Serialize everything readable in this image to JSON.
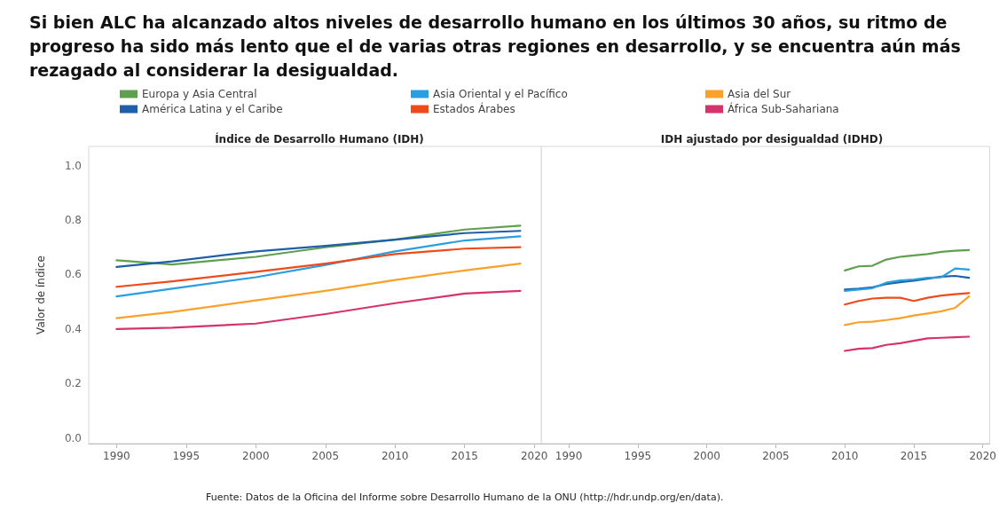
{
  "chart_data": [
    {
      "type": "line",
      "title": "Si bien ALC ha alcanzado altos niveles de desarrollo humano en los últimos 30 años, su ritmo de progreso ha sido más lento que el de varias otras regiones en desarrollo, y se encuentra aún más rezagado al considerar la desigualdad.",
      "subtitle": "Índice de Desarrollo Humano (IDH)",
      "ylabel": "Valor de índice",
      "x": [
        1990,
        1994,
        2000,
        2005,
        2010,
        2015,
        2019
      ],
      "series": [
        {
          "name": "Europa y Asia Central",
          "color": "#5fa04e",
          "values": [
            0.652,
            0.637,
            0.665,
            0.7,
            0.728,
            0.765,
            0.779
          ]
        },
        {
          "name": "América Latina y el Caribe",
          "color": "#1f5fa8",
          "values": [
            0.628,
            0.648,
            0.685,
            0.705,
            0.728,
            0.752,
            0.76
          ]
        },
        {
          "name": "Asia Oriental y el Pacífico",
          "color": "#2a9ee0",
          "values": [
            0.52,
            0.548,
            0.59,
            0.635,
            0.685,
            0.725,
            0.74
          ]
        },
        {
          "name": "Estados Árabes",
          "color": "#f04a1a",
          "values": [
            0.555,
            0.575,
            0.61,
            0.64,
            0.675,
            0.695,
            0.7
          ]
        },
        {
          "name": "Asia del Sur",
          "color": "#f9a12a",
          "values": [
            0.44,
            0.463,
            0.505,
            0.54,
            0.58,
            0.615,
            0.64
          ]
        },
        {
          "name": "África Sub-Sahariana",
          "color": "#d6336c",
          "values": [
            0.4,
            0.405,
            0.42,
            0.455,
            0.495,
            0.53,
            0.54
          ]
        }
      ],
      "xlim": [
        1988,
        2020.5
      ],
      "xticks": [
        1990,
        1995,
        2000,
        2005,
        2010,
        2015,
        2020
      ],
      "ylim": [
        -0.02,
        1.07
      ],
      "yticks": [
        {
          "value": 0,
          "label": "0.0"
        },
        0.2,
        0.4,
        0.6,
        0.8,
        {
          "value": 1,
          "label": "1.0"
        }
      ],
      "grid": false,
      "legend": "top",
      "marker": "none",
      "annotations": [
        "Fuente: Datos de la Oficina del Informe sobre Desarrollo Humano de la ONU (http://hdr.undp.org/en/data)."
      ]
    },
    {
      "type": "line",
      "title": "IDH ajustado por desigualdad (IDHD)",
      "x": [
        2010,
        2011,
        2012,
        2013,
        2014,
        2015,
        2016,
        2017,
        2018,
        2019
      ],
      "series": [
        {
          "color": "#5fa04e",
          "values": [
            0.615,
            0.63,
            0.632,
            0.655,
            0.665,
            0.67,
            0.675,
            0.683,
            0.687,
            0.69
          ]
        },
        {
          "color": "#1f5fa8",
          "values": [
            0.545,
            0.548,
            0.553,
            0.565,
            0.572,
            0.577,
            0.585,
            0.592,
            0.595,
            0.588
          ]
        },
        {
          "color": "#2a9ee0",
          "values": [
            0.54,
            0.545,
            0.55,
            0.57,
            0.578,
            0.582,
            0.588,
            0.59,
            0.622,
            0.618
          ]
        },
        {
          "color": "#f04a1a",
          "values": [
            0.49,
            0.503,
            0.512,
            0.515,
            0.515,
            0.503,
            0.515,
            0.523,
            0.528,
            0.532
          ]
        },
        {
          "color": "#f9a12a",
          "values": [
            0.415,
            0.425,
            0.427,
            0.433,
            0.44,
            0.45,
            0.457,
            0.465,
            0.478,
            0.52
          ]
        },
        {
          "color": "#d6336c",
          "values": [
            0.32,
            0.328,
            0.33,
            0.342,
            0.348,
            0.357,
            0.366,
            0.368,
            0.37,
            0.372
          ]
        }
      ],
      "xlim": [
        1988,
        2020.5
      ],
      "xticks": [
        1990,
        1995,
        2000,
        2005,
        2010,
        2015,
        2020
      ],
      "ylim": [
        -0.02,
        1.07
      ],
      "grid": false,
      "legend": false,
      "marker": "none",
      "tick_labels": "x"
    }
  ]
}
